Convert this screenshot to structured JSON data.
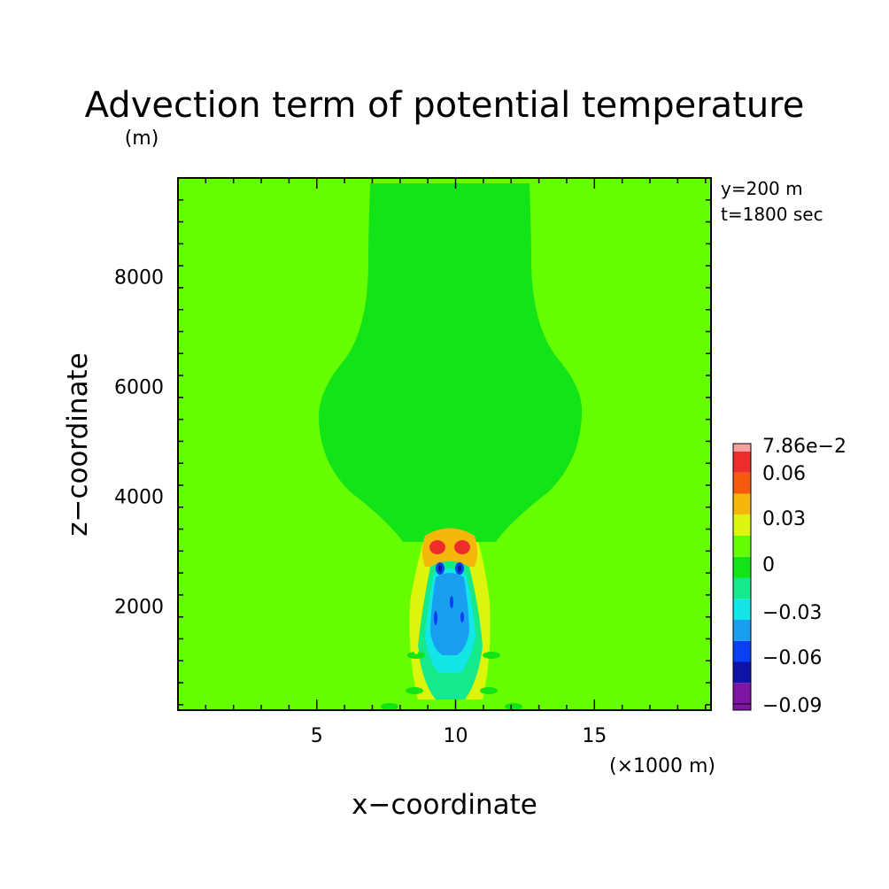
{
  "chart_data": {
    "type": "heatmap",
    "title": "Advection term of potential temperature",
    "ylabel_unit": "(m)",
    "xlabel": "x−coordinate",
    "ylabel": "z−coordinate",
    "x_unit": "(×1000 m)",
    "annotations": [
      "y=200 m",
      "t=1800 sec"
    ],
    "xlim": [
      0,
      19.2
    ],
    "ylim": [
      100,
      9800
    ],
    "x_ticks": [
      5,
      10,
      15
    ],
    "y_ticks": [
      2000,
      4000,
      6000,
      8000
    ],
    "x_tick_labels": [
      "5",
      "10",
      "15"
    ],
    "y_tick_labels": [
      "2000",
      "4000",
      "6000",
      "8000"
    ],
    "colorbar": {
      "labels": [
        "7.86e−2",
        "0.06",
        "0.03",
        "0",
        "−0.03",
        "−0.06",
        "−0.09"
      ],
      "levels": [
        -0.09,
        -0.075,
        -0.06,
        -0.045,
        -0.03,
        -0.015,
        0,
        0.015,
        0.03,
        0.045,
        0.06,
        0.075,
        0.0786
      ],
      "colors": [
        "#7d16a3",
        "#0e12a6",
        "#0b3ff2",
        "#1a9eef",
        "#12e6e6",
        "#16e88c",
        "#13e418",
        "#66ff00",
        "#ddf50a",
        "#f5b70c",
        "#f55a0f",
        "#ee2c2c",
        "#f8a0a0"
      ]
    },
    "grid": false,
    "background_value": 0.005
  }
}
